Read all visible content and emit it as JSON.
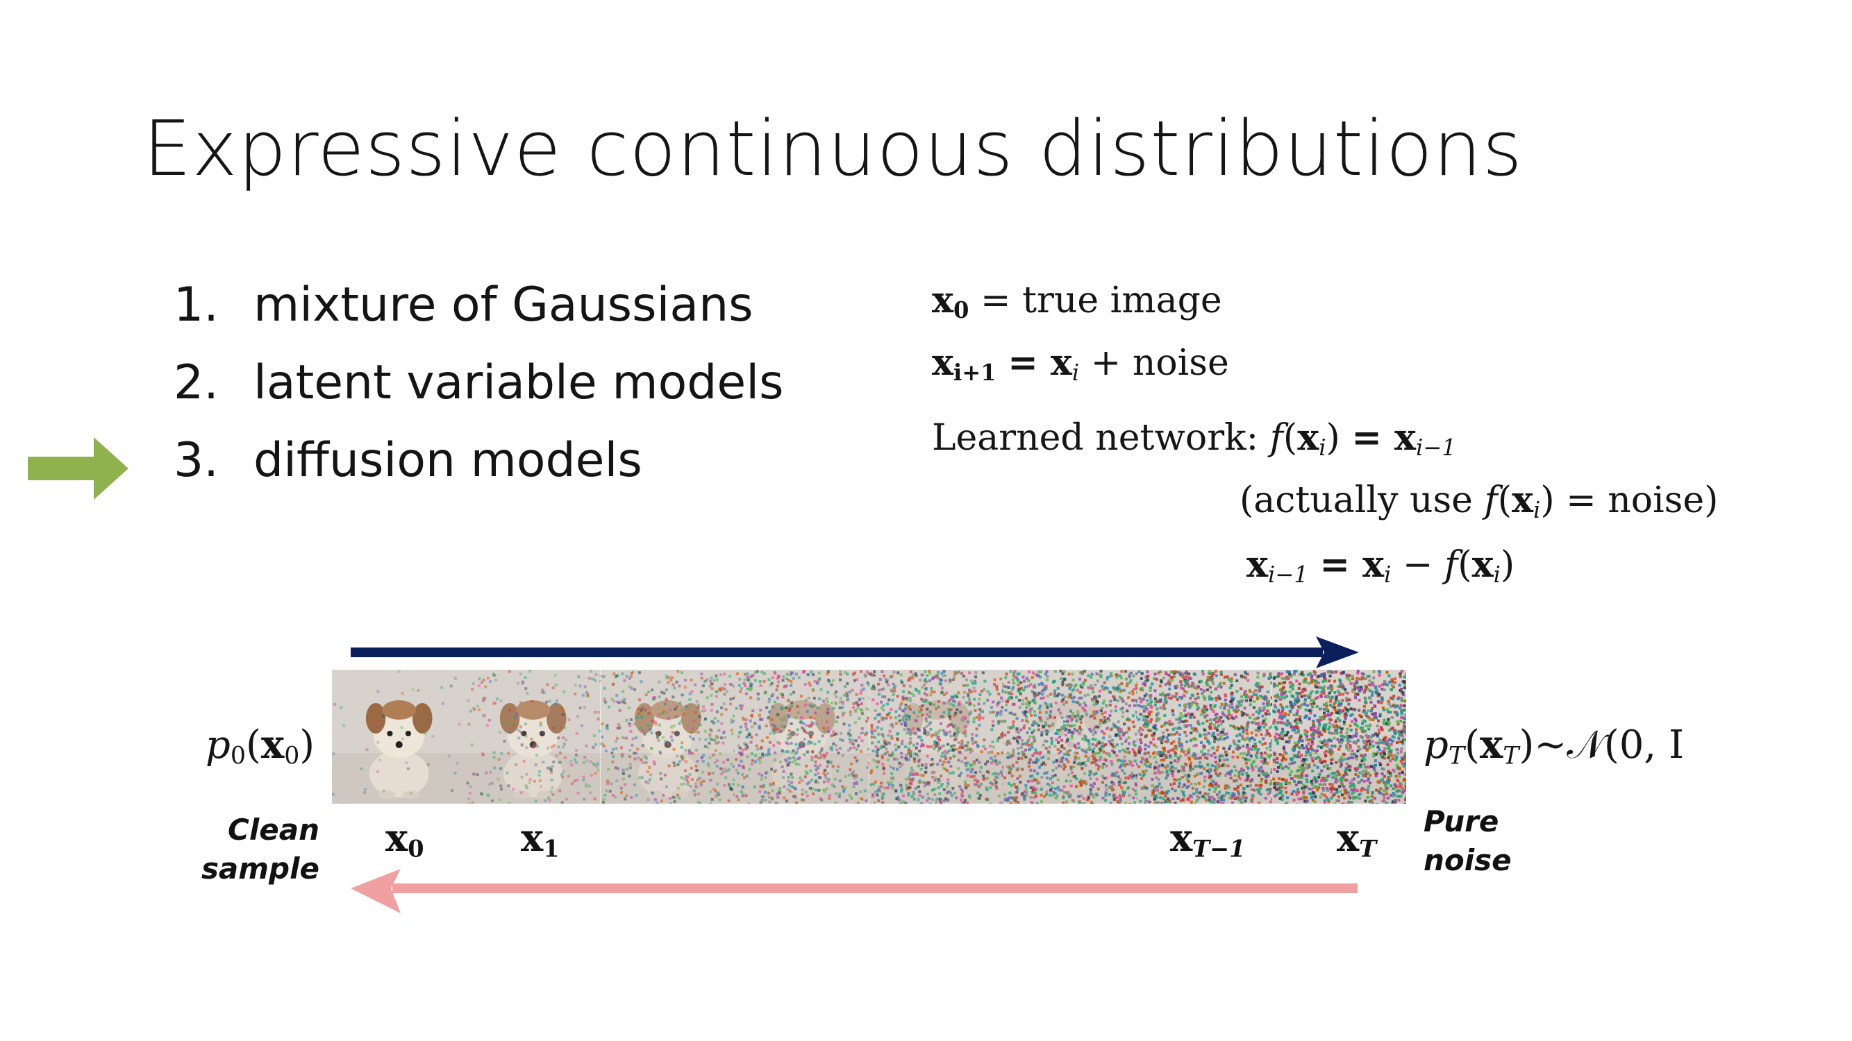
{
  "slide": {
    "title": "Expressive continuous distributions",
    "list": [
      {
        "num": "1.",
        "label": "mixture of Gaussians"
      },
      {
        "num": "2.",
        "label": "latent variable models"
      },
      {
        "num": "3.",
        "label": "diffusion models",
        "highlighted": true
      }
    ],
    "pointer_color": "#8fb24e"
  },
  "equations": {
    "eq1": {
      "lhs": "x",
      "lhs_sub": "0",
      "rhs": "= true image"
    },
    "eq2": {
      "lhs": "x",
      "lhs_sub": "i+1",
      "mid": "= x",
      "mid_sub": "i",
      "rhs": "+ noise"
    },
    "eq3": {
      "prefix": "Learned network:",
      "fn": "f",
      "arg": "x",
      "arg_sub": "i",
      "rhs": "= x",
      "rhs_sub": "i−1"
    },
    "eq4": {
      "prefix": "(actually use",
      "fn": "f",
      "arg": "x",
      "arg_sub": "i",
      "rhs": "= noise)"
    },
    "eq5": {
      "lhs": "x",
      "lhs_sub": "i−1",
      "mid": "= x",
      "mid_sub": "i",
      "minus": "−",
      "fn": "f",
      "arg": "x",
      "arg_sub": "i"
    }
  },
  "diagram": {
    "left_dist": {
      "p": "p",
      "p_sub": "0",
      "x": "x",
      "x_sub": "0"
    },
    "right_dist": {
      "p": "p",
      "p_sub": "T",
      "x": "x",
      "x_sub": "T",
      "tail": "~𝒩(0, I"
    },
    "left_caption": [
      "Clean",
      "sample"
    ],
    "right_caption": [
      "Pure",
      "noise"
    ],
    "frame_labels": [
      {
        "base": "x",
        "sub": "0"
      },
      {
        "base": "x",
        "sub": "1"
      },
      {
        "base": "x",
        "sub": "T−1"
      },
      {
        "base": "x",
        "sub": "T"
      }
    ],
    "frame_count": 8,
    "forward_arrow_color": "#0a1f5c",
    "reverse_arrow_color": "#f0a0a0"
  }
}
